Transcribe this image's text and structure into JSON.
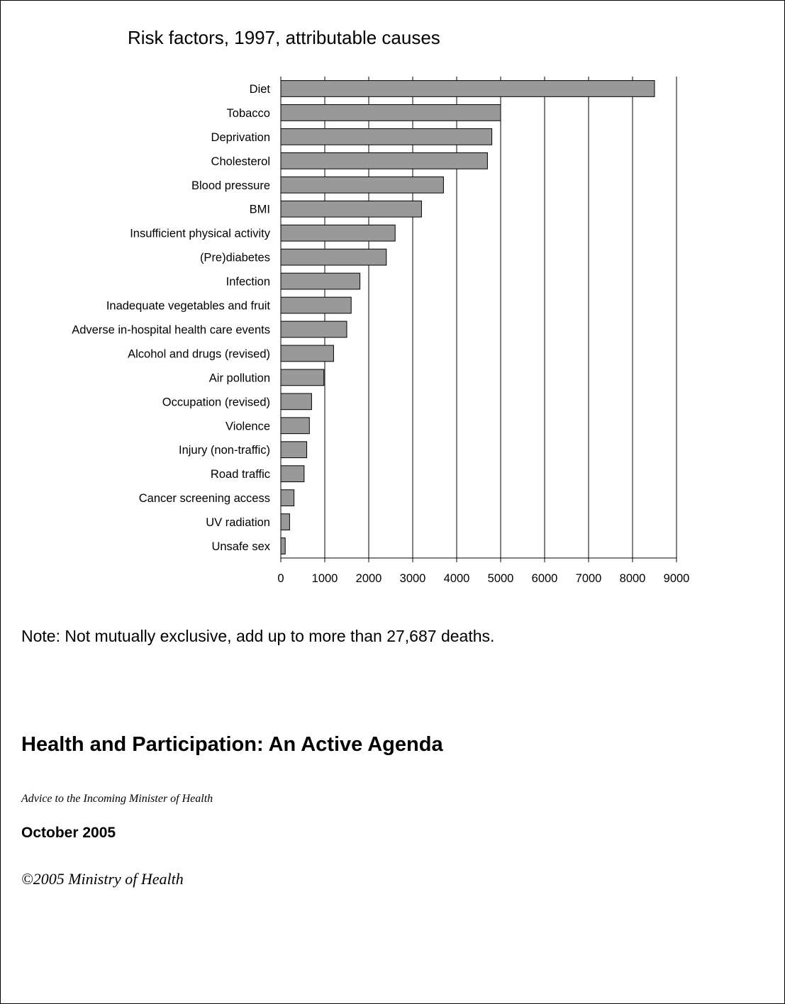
{
  "chart_data": {
    "type": "bar",
    "orientation": "horizontal",
    "title": "Risk factors, 1997, attributable causes",
    "categories": [
      "Diet",
      "Tobacco",
      "Deprivation",
      "Cholesterol",
      "Blood pressure",
      "BMI",
      "Insufficient physical activity",
      "(Pre)diabetes",
      "Infection",
      "Inadequate vegetables and fruit",
      "Adverse in-hospital health care events",
      "Alcohol and drugs (revised)",
      "Air pollution",
      "Occupation (revised)",
      "Violence",
      "Injury (non-traffic)",
      "Road traffic",
      "Cancer screening access",
      "UV radiation",
      "Unsafe sex"
    ],
    "values": [
      8500,
      5000,
      4800,
      4700,
      3700,
      3200,
      2600,
      2400,
      1800,
      1600,
      1500,
      1200,
      980,
      700,
      650,
      590,
      530,
      300,
      200,
      100
    ],
    "xlim": [
      0,
      9000
    ],
    "xticks": [
      0,
      1000,
      2000,
      3000,
      4000,
      5000,
      6000,
      7000,
      8000,
      9000
    ],
    "grid": "vertical",
    "legend": "none",
    "bar_color": "#999999"
  },
  "note": "Note: Not mutually exclusive, add up to more than 27,687 deaths.",
  "document": {
    "title": "Health and Participation: An Active Agenda",
    "subtitle": "Advice to the Incoming Minister of Health",
    "date": "October 2005",
    "copyright": "©2005 Ministry of Health"
  }
}
